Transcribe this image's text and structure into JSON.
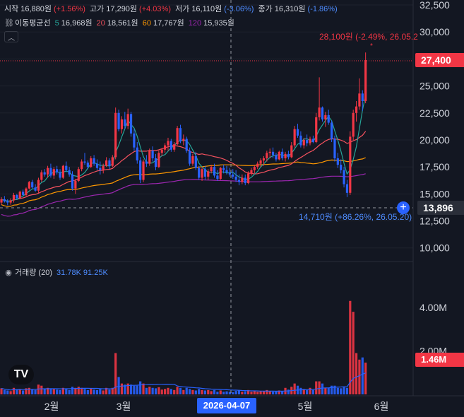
{
  "ohlc": {
    "open_label": "시작",
    "open_value": "16,880원",
    "open_change": "(+1.56%)",
    "high_label": "고가",
    "high_value": "17,290원",
    "high_change": "(+4.03%)",
    "low_label": "저가",
    "low_value": "16,110원",
    "low_change": "(-3.06%)",
    "close_label": "종가",
    "close_value": "16,310원",
    "close_change": "(-1.86%)"
  },
  "ma": {
    "icon": "link-icon",
    "label": "이동평균선",
    "p5": "5",
    "v5": "16,968원",
    "p20": "20",
    "v20": "18,561원",
    "p60": "60",
    "v60": "17,767원",
    "p120": "120",
    "v120": "15,935원",
    "colors": {
      "ma5": "#26a69a",
      "ma20": "#f7525f",
      "ma60": "#ff9800",
      "ma120": "#9c27b0"
    }
  },
  "volume_legend": {
    "icon": "eye-icon",
    "label": "거래량 (20)",
    "v1": "31.78K",
    "v2": "91.25K"
  },
  "last_price": "27,400",
  "crosshair_price": "13,896",
  "crosshair_date": "2026-04-07",
  "volume_last": "1.46M",
  "high_annotation": "28,100원 (-2.49%, 26.05.2",
  "low_annotation": "14,710원 (+86.26%, 26.05.20)",
  "logo_text": "TV",
  "chart_data": {
    "type": "candlestick",
    "price_axis": {
      "ticks": [
        "32,500",
        "30,000",
        "27,500",
        "25,000",
        "22,500",
        "20,000",
        "17,500",
        "15,000",
        "12,500",
        "10,000"
      ],
      "range": [
        9000,
        32700
      ]
    },
    "volume_axis": {
      "ticks": [
        "4.00M",
        "2.00M"
      ],
      "range": [
        0,
        5300000
      ]
    },
    "x_axis": {
      "labels": [
        "2월",
        "3월",
        "5월",
        "6월"
      ]
    },
    "colors": {
      "up": "#f23645",
      "down": "#2962ff",
      "ma5": "#26a69a",
      "ma20": "#f7525f",
      "ma60": "#ff9800",
      "ma120": "#9c27b0",
      "volume_ma": "#2962ff"
    },
    "candles": [
      [
        14200,
        14700,
        14000,
        14500,
        0.28
      ],
      [
        14500,
        14800,
        14200,
        14300,
        0.2
      ],
      [
        14300,
        14500,
        13950,
        14200,
        0.18
      ],
      [
        14200,
        14600,
        14000,
        14400,
        0.15
      ],
      [
        14400,
        15100,
        14200,
        14900,
        0.3
      ],
      [
        14900,
        15000,
        14500,
        14600,
        0.22
      ],
      [
        14600,
        15300,
        14500,
        15200,
        0.25
      ],
      [
        15200,
        15400,
        14800,
        14900,
        0.18
      ],
      [
        14900,
        15600,
        14800,
        15500,
        0.28
      ],
      [
        15500,
        16200,
        15400,
        16100,
        0.3
      ],
      [
        16100,
        16300,
        15500,
        15600,
        0.22
      ],
      [
        15600,
        15900,
        15200,
        15300,
        0.2
      ],
      [
        15300,
        16500,
        15100,
        16300,
        0.45
      ],
      [
        16300,
        17200,
        16100,
        17000,
        0.4
      ],
      [
        17000,
        17300,
        16600,
        16800,
        0.25
      ],
      [
        16800,
        17600,
        16500,
        17400,
        0.3
      ],
      [
        17400,
        17800,
        16500,
        16700,
        0.28
      ],
      [
        16700,
        17500,
        16400,
        17300,
        0.26
      ],
      [
        17300,
        17600,
        16800,
        17000,
        0.22
      ],
      [
        17000,
        17300,
        16300,
        16500,
        0.2
      ],
      [
        16500,
        17700,
        16400,
        17600,
        0.3
      ],
      [
        17600,
        18000,
        17000,
        17200,
        0.25
      ],
      [
        17200,
        17500,
        16600,
        16800,
        0.2
      ],
      [
        16800,
        17100,
        15300,
        15500,
        0.35
      ],
      [
        15500,
        16400,
        15000,
        16200,
        0.3
      ],
      [
        16200,
        17500,
        16100,
        17300,
        0.35
      ],
      [
        17300,
        18200,
        17100,
        18000,
        0.3
      ],
      [
        18000,
        18800,
        17700,
        17900,
        0.25
      ],
      [
        17900,
        18100,
        17300,
        17500,
        0.2
      ],
      [
        17500,
        18500,
        17400,
        18300,
        0.28
      ],
      [
        18300,
        18600,
        17600,
        17800,
        0.22
      ],
      [
        17800,
        18200,
        17200,
        17400,
        0.2
      ],
      [
        17400,
        18000,
        16800,
        17200,
        0.25
      ],
      [
        17200,
        17800,
        16900,
        17600,
        0.18
      ],
      [
        17600,
        18400,
        17500,
        18100,
        0.3
      ],
      [
        18100,
        18300,
        17300,
        17600,
        0.22
      ],
      [
        17600,
        18600,
        17500,
        18400,
        0.3
      ],
      [
        18400,
        23000,
        18200,
        22500,
        1.9
      ],
      [
        22500,
        22800,
        20800,
        21000,
        0.8
      ],
      [
        21000,
        22200,
        20600,
        21900,
        0.5
      ],
      [
        21900,
        22600,
        21000,
        21300,
        0.45
      ],
      [
        21300,
        22900,
        21000,
        22400,
        0.5
      ],
      [
        22400,
        22600,
        20300,
        20600,
        0.45
      ],
      [
        20600,
        21000,
        19000,
        19300,
        0.4
      ],
      [
        19300,
        19800,
        17800,
        18100,
        0.4
      ],
      [
        18100,
        18400,
        16000,
        16300,
        0.6
      ],
      [
        16300,
        18200,
        16100,
        18000,
        0.5
      ],
      [
        18000,
        18600,
        17500,
        17800,
        0.3
      ],
      [
        17800,
        19200,
        17600,
        19000,
        0.35
      ],
      [
        19000,
        19400,
        18000,
        18300,
        0.3
      ],
      [
        18300,
        18700,
        17200,
        17500,
        0.28
      ],
      [
        17500,
        19000,
        17400,
        18800,
        0.33
      ],
      [
        18800,
        19200,
        18500,
        19100,
        0.22
      ],
      [
        19100,
        19700,
        18800,
        19500,
        0.25
      ],
      [
        19500,
        20200,
        19000,
        19900,
        0.3
      ],
      [
        19900,
        20100,
        18900,
        19100,
        0.25
      ],
      [
        19100,
        19800,
        18900,
        19600,
        0.2
      ],
      [
        19600,
        21300,
        19500,
        21100,
        0.35
      ],
      [
        21100,
        21400,
        19700,
        19900,
        0.3
      ],
      [
        19900,
        20500,
        19500,
        20100,
        0.2
      ],
      [
        20100,
        20300,
        18800,
        19000,
        0.3
      ],
      [
        19000,
        19300,
        17600,
        17800,
        0.25
      ],
      [
        17800,
        18700,
        17600,
        18500,
        0.2
      ],
      [
        18500,
        18900,
        17200,
        17400,
        0.18
      ],
      [
        17400,
        17600,
        16300,
        16500,
        0.25
      ],
      [
        16500,
        17500,
        16200,
        17300,
        0.2
      ],
      [
        17300,
        17600,
        16300,
        16600,
        0.18
      ],
      [
        16600,
        17300,
        16300,
        17100,
        0.2
      ],
      [
        17100,
        17700,
        16900,
        17500,
        0.15
      ],
      [
        17500,
        17800,
        16500,
        16700,
        0.2
      ],
      [
        16700,
        17200,
        16200,
        16400,
        0.12
      ],
      [
        16400,
        17500,
        16300,
        17400,
        0.18
      ],
      [
        17400,
        17700,
        16900,
        17200,
        0.12
      ],
      [
        17200,
        17600,
        16800,
        17000,
        0.14
      ],
      [
        17000,
        17400,
        16600,
        16800,
        0.12
      ],
      [
        16800,
        17300,
        16400,
        16600,
        0.1
      ],
      [
        16600,
        17200,
        16100,
        16300,
        0.16
      ],
      [
        16300,
        16800,
        15800,
        16100,
        0.2
      ],
      [
        16100,
        16800,
        15900,
        16500,
        0.12
      ],
      [
        16500,
        16800,
        15800,
        16000,
        0.14
      ],
      [
        16000,
        17100,
        15900,
        16900,
        0.2
      ],
      [
        16900,
        17400,
        16700,
        17200,
        0.12
      ],
      [
        17200,
        17700,
        16900,
        17500,
        0.15
      ],
      [
        17500,
        18000,
        17300,
        17800,
        0.12
      ],
      [
        17800,
        18300,
        17500,
        18100,
        0.16
      ],
      [
        18100,
        18500,
        17600,
        18300,
        0.14
      ],
      [
        18300,
        19000,
        18000,
        18800,
        0.2
      ],
      [
        18800,
        19200,
        18300,
        18900,
        0.15
      ],
      [
        18900,
        19300,
        18300,
        18600,
        0.12
      ],
      [
        18600,
        18800,
        18000,
        18200,
        0.15
      ],
      [
        18200,
        19000,
        18100,
        18900,
        0.18
      ],
      [
        18900,
        19200,
        18100,
        18300,
        0.14
      ],
      [
        18300,
        18900,
        18000,
        18700,
        0.3
      ],
      [
        18700,
        19000,
        18200,
        18400,
        0.22
      ],
      [
        18400,
        19800,
        18300,
        19500,
        0.35
      ],
      [
        19500,
        21300,
        19300,
        21000,
        0.5
      ],
      [
        21000,
        21500,
        20200,
        20400,
        0.4
      ],
      [
        20400,
        20800,
        19300,
        19500,
        0.3
      ],
      [
        19500,
        20200,
        19200,
        20000,
        0.25
      ],
      [
        20000,
        20500,
        19400,
        19700,
        0.2
      ],
      [
        19700,
        20300,
        19500,
        20100,
        0.3
      ],
      [
        20100,
        20400,
        19700,
        19800,
        0.2
      ],
      [
        19800,
        22500,
        19700,
        22100,
        0.6
      ],
      [
        22100,
        25800,
        21800,
        23000,
        0.6
      ],
      [
        23000,
        23100,
        21700,
        21900,
        0.5
      ],
      [
        21900,
        22600,
        21200,
        22300,
        0.3
      ],
      [
        22300,
        22800,
        21400,
        21600,
        0.3
      ],
      [
        21600,
        21800,
        19800,
        20100,
        0.4
      ],
      [
        20100,
        20400,
        18000,
        18300,
        0.4
      ],
      [
        18300,
        18800,
        17400,
        17700,
        0.3
      ],
      [
        17700,
        18200,
        16900,
        17200,
        0.28
      ],
      [
        17200,
        17500,
        15600,
        15900,
        0.35
      ],
      [
        15900,
        16300,
        14710,
        15100,
        0.3
      ],
      [
        15100,
        20800,
        14900,
        20300,
        4.3
      ],
      [
        20300,
        22800,
        20000,
        22500,
        3.8
      ],
      [
        22500,
        23600,
        21700,
        23100,
        1.9
      ],
      [
        23100,
        25700,
        22800,
        24300,
        1.6
      ],
      [
        24300,
        24600,
        22700,
        23600,
        1.7
      ],
      [
        23600,
        28100,
        23400,
        27400,
        1.46
      ]
    ]
  }
}
